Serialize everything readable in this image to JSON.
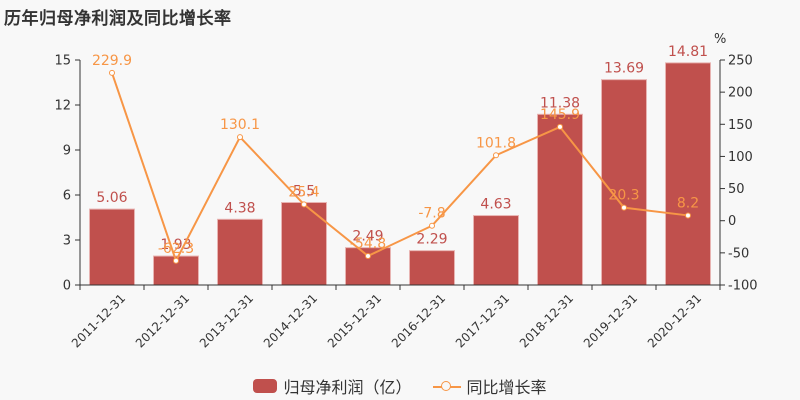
{
  "title": "历年归母净利润及同比增长率",
  "colors": {
    "bar": "#c0504d",
    "line": "#f79646",
    "axis": "#333333"
  },
  "legend": {
    "bar_label": "归母净利润（亿）",
    "line_label": "同比增长率"
  },
  "right_axis_unit": "%",
  "chart_data": {
    "type": "bar+line",
    "title": "历年归母净利润及同比增长率",
    "categories": [
      "2011-12-31",
      "2012-12-31",
      "2013-12-31",
      "2014-12-31",
      "2015-12-31",
      "2016-12-31",
      "2017-12-31",
      "2018-12-31",
      "2019-12-31",
      "2020-12-31"
    ],
    "series": [
      {
        "name": "归母净利润（亿）",
        "type": "bar",
        "axis": "left",
        "values": [
          5.06,
          1.93,
          4.38,
          5.5,
          2.49,
          2.29,
          4.63,
          11.38,
          13.69,
          14.81
        ],
        "labels": [
          "5.06",
          "1.93",
          "4.38",
          "5.5",
          "2.49",
          "2.29",
          "4.63",
          "11.38",
          "13.69",
          "14.81"
        ]
      },
      {
        "name": "同比增长率",
        "type": "line",
        "axis": "right",
        "values": [
          229.9,
          -62.3,
          130.1,
          25.4,
          -54.8,
          -7.8,
          101.8,
          145.9,
          20.3,
          8.2
        ],
        "labels": [
          "229.9",
          "-62.3",
          "130.1",
          "25.4",
          "-54.8",
          "-7.8",
          "101.8",
          "145.9",
          "20.3",
          "8.2"
        ]
      }
    ],
    "left_axis": {
      "ylim": [
        0,
        15
      ],
      "ticks": [
        "0",
        "3",
        "6",
        "9",
        "12",
        "15"
      ]
    },
    "right_axis": {
      "ylim": [
        -100,
        250
      ],
      "ticks": [
        "-100",
        "-50",
        "0",
        "50",
        "100",
        "150",
        "200",
        "250"
      ],
      "unit": "%"
    },
    "xlabel": "",
    "ylabel": "",
    "grid": false,
    "legend_position": "bottom"
  }
}
